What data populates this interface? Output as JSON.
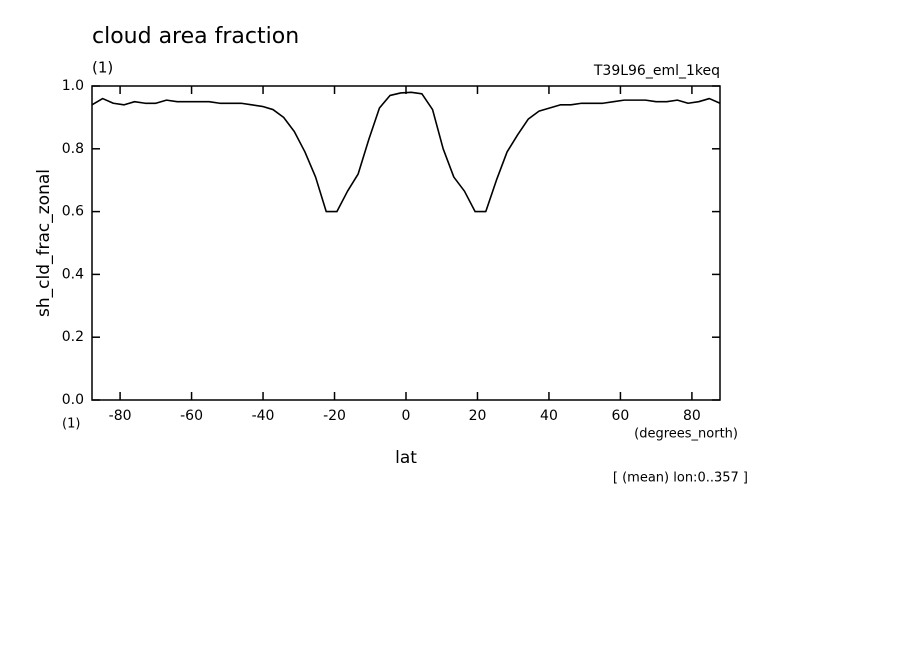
{
  "chart_data": {
    "type": "line",
    "title": "cloud area fraction",
    "subtitle": "(1)",
    "dataset": "T39L96_eml_1keq",
    "y_label": "sh_cld_frac_zonal",
    "y_units": "(1)",
    "x_label": "lat",
    "x_units": "(degrees_north)",
    "annotation": "[ (mean) lon:0..357 ]",
    "x": [
      -87.86,
      -84.88,
      -81.9,
      -78.92,
      -75.94,
      -72.96,
      -69.99,
      -67.01,
      -64.03,
      -61.05,
      -58.07,
      -55.09,
      -52.11,
      -49.13,
      -46.15,
      -43.17,
      -40.2,
      -37.22,
      -34.24,
      -31.26,
      -28.28,
      -25.3,
      -22.32,
      -19.34,
      -16.36,
      -13.38,
      -10.4,
      -7.43,
      -4.45,
      -1.47,
      1.47,
      4.45,
      7.43,
      10.4,
      13.38,
      16.36,
      19.34,
      22.32,
      25.3,
      28.28,
      31.26,
      34.24,
      37.22,
      40.2,
      43.17,
      46.15,
      49.13,
      52.11,
      55.09,
      58.07,
      61.05,
      64.03,
      67.01,
      69.99,
      72.96,
      75.94,
      78.92,
      81.9,
      84.88,
      87.86
    ],
    "series": [
      {
        "color": "#000000",
        "values": [
          0.94,
          0.96,
          0.945,
          0.94,
          0.95,
          0.945,
          0.945,
          0.955,
          0.95,
          0.95,
          0.95,
          0.95,
          0.945,
          0.945,
          0.945,
          0.94,
          0.935,
          0.925,
          0.9,
          0.855,
          0.79,
          0.71,
          0.6,
          0.6,
          0.665,
          0.72,
          0.83,
          0.93,
          0.97,
          0.978,
          0.98,
          0.975,
          0.925,
          0.8,
          0.71,
          0.665,
          0.6,
          0.6,
          0.7,
          0.79,
          0.845,
          0.895,
          0.92,
          0.93,
          0.94,
          0.94,
          0.945,
          0.945,
          0.945,
          0.95,
          0.955,
          0.955,
          0.955,
          0.95,
          0.95,
          0.955,
          0.945,
          0.95,
          0.96,
          0.945
        ]
      }
    ],
    "xlim": [
      -87.86,
      87.86
    ],
    "xticks": [
      -80,
      -60,
      -40,
      -20,
      0,
      20,
      40,
      60,
      80
    ],
    "ylim": [
      0,
      1
    ],
    "yticks": [
      {
        "value": 0,
        "label": "0.0"
      },
      {
        "value": 0.2,
        "label": "0.2"
      },
      {
        "value": 0.4,
        "label": "0.4"
      },
      {
        "value": 0.6,
        "label": "0.6"
      },
      {
        "value": 0.8,
        "label": "0.8"
      },
      {
        "value": 1,
        "label": "1.0"
      }
    ]
  }
}
